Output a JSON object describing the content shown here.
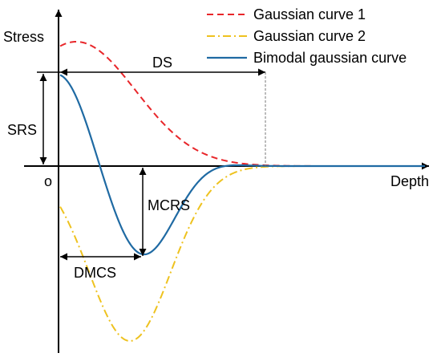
{
  "chart_data": {
    "type": "line",
    "title": "",
    "xlabel": "Depth",
    "ylabel": "Stress",
    "origin_label": "o",
    "grid": false,
    "legend_position": "top-right",
    "series": [
      {
        "name": "Gaussian curve 1",
        "color": "#e8262a",
        "dash": "dashed"
      },
      {
        "name": "Gaussian curve 2",
        "color": "#eec21f",
        "dash": "dash-dot"
      },
      {
        "name": "Bimodal gaussian curve",
        "color": "#1f6aa3",
        "dash": "solid"
      }
    ],
    "annotations": [
      "DS",
      "SRS",
      "MCRS",
      "DMCS"
    ]
  }
}
